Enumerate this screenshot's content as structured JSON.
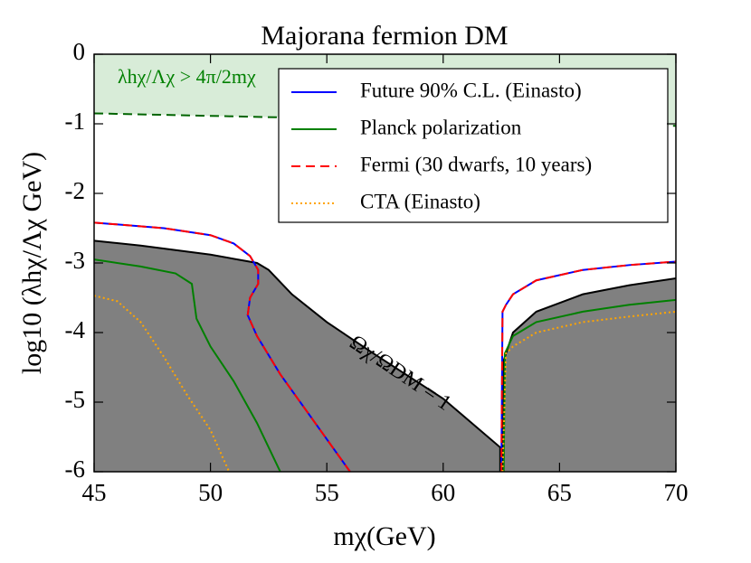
{
  "chart_data": {
    "type": "line",
    "title": "Majorana fermion DM",
    "x_label": "mχ(GeV)",
    "y_label": "log10 (λhχ/Λχ GeV)",
    "annotations": [
      "λhχ/Λχ > 4π/2mχ",
      "Ωχ/ΩDM = 1"
    ],
    "xlim": [
      45,
      70
    ],
    "ylim": [
      -6,
      0
    ],
    "xticks": [
      45,
      50,
      55,
      60,
      65,
      70
    ],
    "yticks": [
      -6,
      -5,
      -4,
      -3,
      -2,
      -1,
      0
    ],
    "legend": "upper right",
    "series": [
      {
        "color": "#000000",
        "dash": "solid",
        "fill": "#808080",
        "x": [
          45,
          47,
          50,
          52,
          52.5,
          53.5,
          55,
          57,
          60,
          62.45,
          62.45,
          null,
          62.55,
          62.6,
          63,
          64,
          66,
          68,
          70
        ],
        "values": [
          -2.68,
          -2.75,
          -2.88,
          -3.0,
          -3.1,
          -3.45,
          -3.85,
          -4.3,
          -4.95,
          -5.65,
          -6,
          null,
          -6,
          -4.4,
          -4.0,
          -3.7,
          -3.45,
          -3.32,
          -3.22
        ]
      },
      {
        "color": "#006400",
        "dash": "dashed",
        "fill": "#d8ecd8",
        "x": [
          45,
          70
        ],
        "values": [
          -0.85,
          -1.03
        ]
      },
      {
        "name": "Future 90% C.L. (Einasto)",
        "color": "#0000ff",
        "dash": "solid",
        "x": [
          45,
          48,
          50,
          51,
          51.7,
          52.05,
          52.05,
          51.7,
          51.6,
          52,
          53,
          54.5,
          56,
          null,
          62.5,
          62.55,
          62.7,
          63,
          64,
          66,
          68,
          70
        ],
        "values": [
          -2.42,
          -2.5,
          -2.6,
          -2.72,
          -2.9,
          -3.1,
          -3.3,
          -3.5,
          -3.75,
          -4.05,
          -4.6,
          -5.3,
          -6,
          null,
          -6,
          -3.7,
          -3.6,
          -3.45,
          -3.25,
          -3.1,
          -3.03,
          -2.98
        ]
      },
      {
        "name": "Planck polarization",
        "color": "#008000",
        "dash": "solid",
        "x": [
          45,
          47,
          48.5,
          49.2,
          49.4,
          50,
          51,
          52,
          53,
          null,
          62.6,
          62.65,
          63,
          64,
          66,
          68,
          70
        ],
        "values": [
          -2.95,
          -3.05,
          -3.15,
          -3.3,
          -3.8,
          -4.2,
          -4.7,
          -5.3,
          -6,
          null,
          -6,
          -4.3,
          -4.05,
          -3.85,
          -3.7,
          -3.6,
          -3.53
        ]
      },
      {
        "name": "Fermi (30 dwarfs, 10 years)",
        "color": "#ff0000",
        "dash": "dashed",
        "x": [
          45,
          48,
          50,
          51,
          51.7,
          52.05,
          52.05,
          51.7,
          51.6,
          52,
          53,
          54.5,
          56,
          null,
          62.5,
          62.55,
          62.7,
          63,
          64,
          66,
          68,
          70
        ],
        "values": [
          -2.42,
          -2.5,
          -2.6,
          -2.72,
          -2.9,
          -3.1,
          -3.3,
          -3.5,
          -3.75,
          -4.05,
          -4.6,
          -5.3,
          -6,
          null,
          -6,
          -3.7,
          -3.6,
          -3.45,
          -3.25,
          -3.1,
          -3.03,
          -2.98
        ]
      },
      {
        "name": "CTA (Einasto)",
        "color": "#ffa500",
        "dash": "dotted",
        "x": [
          45,
          46,
          47,
          48,
          49,
          50,
          50.8,
          null,
          62.55,
          62.7,
          63,
          64,
          66,
          68,
          70
        ],
        "values": [
          -3.47,
          -3.55,
          -3.85,
          -4.35,
          -4.9,
          -5.4,
          -6,
          null,
          -6,
          -4.3,
          -4.2,
          -4.0,
          -3.85,
          -3.77,
          -3.7
        ]
      }
    ]
  }
}
